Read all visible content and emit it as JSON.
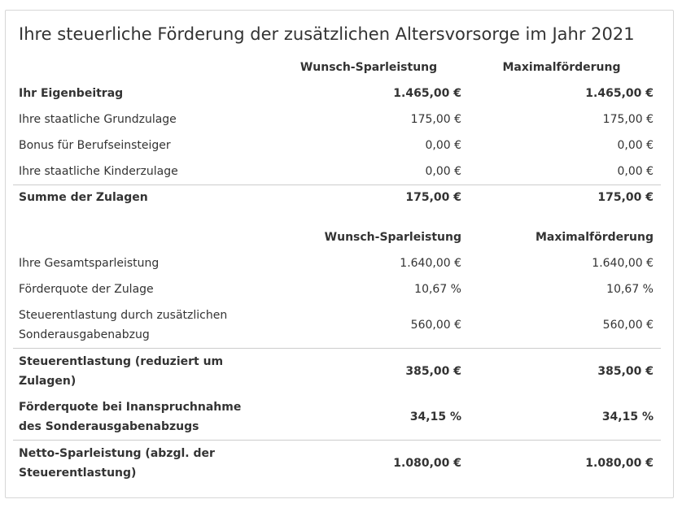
{
  "title": "Ihre steuerliche Förderung der zusätzlichen Altersvorsorge im Jahr 2021",
  "table1": {
    "headers": [
      "Wunsch-Sparleistung",
      "Maximalförderung"
    ],
    "rows": [
      [
        "Ihr Eigenbeitrag",
        "1.465,00 €",
        "1.465,00 €"
      ],
      [
        "Ihre staatliche Grundzulage",
        "175,00 €",
        "175,00 €"
      ],
      [
        "Bonus für Berufseinsteiger",
        "0,00 €",
        "0,00 €"
      ],
      [
        "Ihre staatliche Kinderzulage",
        "0,00 €",
        "0,00 €"
      ],
      [
        "Summe der Zulagen",
        "175,00 €",
        "175,00 €"
      ]
    ]
  },
  "table2": {
    "headers": [
      "Wunsch-Sparleistung",
      "Maximalförderung"
    ],
    "rows": [
      [
        "Ihre Gesamtsparleistung",
        "1.640,00 €",
        "1.640,00 €"
      ],
      [
        "Förderquote der Zulage",
        "10,67 %",
        "10,67 %"
      ],
      [
        "Steuerentlastung durch zusätzlichen Sonderausgabenabzug",
        "560,00 €",
        "560,00 €"
      ],
      [
        "Steuerentlastung (reduziert um Zulagen)",
        "385,00 €",
        "385,00 €"
      ],
      [
        "Förderquote bei Inanspruchnahme des Sonderausgabenabzugs",
        "34,15 %",
        "34,15 %"
      ],
      [
        "Netto-Sparleistung (abzgl. der Steuerentlastung)",
        "1.080,00 €",
        "1.080,00 €"
      ]
    ]
  }
}
